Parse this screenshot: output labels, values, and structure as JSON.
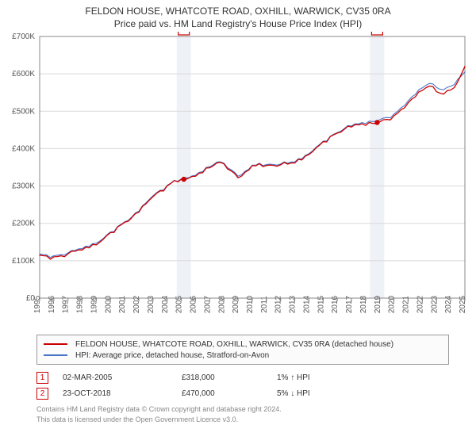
{
  "title_line1": "FELDON HOUSE, WHATCOTE ROAD, OXHILL, WARWICK, CV35 0RA",
  "title_line2": "Price paid vs. HM Land Registry's House Price Index (HPI)",
  "chart": {
    "type": "line",
    "background_color": "#ffffff",
    "plot_border_color": "#888888",
    "grid_color": "#d9d9d9",
    "marker_band_color": "#eef1f6",
    "yaxis": {
      "min": 0,
      "max": 700000,
      "step": 100000,
      "tick_labels": [
        "£0",
        "£100K",
        "£200K",
        "£300K",
        "£400K",
        "£500K",
        "£600K",
        "£700K"
      ],
      "label_fontsize": 10,
      "label_color": "#555555"
    },
    "xaxis": {
      "year_min": 1995,
      "year_max": 2025,
      "tick_years": [
        1995,
        1996,
        1997,
        1998,
        1999,
        2000,
        2001,
        2002,
        2003,
        2004,
        2005,
        2006,
        2007,
        2008,
        2009,
        2010,
        2011,
        2012,
        2013,
        2014,
        2015,
        2016,
        2017,
        2018,
        2019,
        2020,
        2021,
        2022,
        2023,
        2024,
        2025
      ],
      "label_fontsize": 10,
      "label_color": "#555555",
      "label_rotation": -90
    },
    "series": [
      {
        "name": "price_paid",
        "color": "#cc0000",
        "line_width": 1.3,
        "legend_label": "FELDON HOUSE, WHATCOTE ROAD, OXHILL, WARWICK, CV35 0RA (detached house)",
        "data": [
          [
            1995.0,
            115000
          ],
          [
            1995.5,
            108000
          ],
          [
            1996.0,
            106000
          ],
          [
            1996.5,
            110000
          ],
          [
            1997.0,
            118000
          ],
          [
            1997.5,
            128000
          ],
          [
            1998.0,
            133000
          ],
          [
            1998.5,
            139000
          ],
          [
            1999.0,
            146000
          ],
          [
            1999.5,
            158000
          ],
          [
            2000.0,
            172000
          ],
          [
            2000.5,
            186000
          ],
          [
            2001.0,
            200000
          ],
          [
            2001.5,
            216000
          ],
          [
            2002.0,
            234000
          ],
          [
            2002.5,
            256000
          ],
          [
            2003.0,
            272000
          ],
          [
            2003.5,
            284000
          ],
          [
            2004.0,
            296000
          ],
          [
            2004.5,
            311000
          ],
          [
            2005.0,
            317000
          ],
          [
            2005.17,
            318000
          ],
          [
            2005.5,
            322000
          ],
          [
            2006.0,
            330000
          ],
          [
            2006.5,
            340000
          ],
          [
            2007.0,
            352000
          ],
          [
            2007.5,
            362000
          ],
          [
            2008.0,
            358000
          ],
          [
            2008.5,
            340000
          ],
          [
            2009.0,
            322000
          ],
          [
            2009.5,
            334000
          ],
          [
            2010.0,
            350000
          ],
          [
            2010.5,
            356000
          ],
          [
            2011.0,
            352000
          ],
          [
            2011.5,
            354000
          ],
          [
            2012.0,
            358000
          ],
          [
            2012.5,
            362000
          ],
          [
            2013.0,
            366000
          ],
          [
            2013.5,
            374000
          ],
          [
            2014.0,
            386000
          ],
          [
            2014.5,
            400000
          ],
          [
            2015.0,
            414000
          ],
          [
            2015.5,
            428000
          ],
          [
            2016.0,
            440000
          ],
          [
            2016.5,
            454000
          ],
          [
            2017.0,
            462000
          ],
          [
            2017.5,
            468000
          ],
          [
            2018.0,
            466000
          ],
          [
            2018.5,
            470000
          ],
          [
            2018.81,
            470000
          ],
          [
            2019.0,
            472000
          ],
          [
            2019.5,
            476000
          ],
          [
            2020.0,
            484000
          ],
          [
            2020.5,
            500000
          ],
          [
            2021.0,
            522000
          ],
          [
            2021.5,
            542000
          ],
          [
            2022.0,
            560000
          ],
          [
            2022.5,
            570000
          ],
          [
            2023.0,
            555000
          ],
          [
            2023.5,
            548000
          ],
          [
            2024.0,
            556000
          ],
          [
            2024.5,
            575000
          ],
          [
            2025.0,
            620000
          ]
        ]
      },
      {
        "name": "hpi",
        "color": "#4a74c9",
        "line_width": 1.1,
        "legend_label": "HPI: Average price, detached house, Stratford-on-Avon",
        "data": [
          [
            1995.0,
            118000
          ],
          [
            1995.5,
            112000
          ],
          [
            1996.0,
            110000
          ],
          [
            1996.5,
            114000
          ],
          [
            1997.0,
            121000
          ],
          [
            1997.5,
            130000
          ],
          [
            1998.0,
            136000
          ],
          [
            1998.5,
            142000
          ],
          [
            1999.0,
            149000
          ],
          [
            1999.5,
            160000
          ],
          [
            2000.0,
            174000
          ],
          [
            2000.5,
            188000
          ],
          [
            2001.0,
            202000
          ],
          [
            2001.5,
            218000
          ],
          [
            2002.0,
            236000
          ],
          [
            2002.5,
            258000
          ],
          [
            2003.0,
            274000
          ],
          [
            2003.5,
            286000
          ],
          [
            2004.0,
            298000
          ],
          [
            2004.5,
            312000
          ],
          [
            2005.0,
            318000
          ],
          [
            2005.5,
            323000
          ],
          [
            2006.0,
            332000
          ],
          [
            2006.5,
            342000
          ],
          [
            2007.0,
            354000
          ],
          [
            2007.5,
            364000
          ],
          [
            2008.0,
            360000
          ],
          [
            2008.5,
            343000
          ],
          [
            2009.0,
            326000
          ],
          [
            2009.5,
            337000
          ],
          [
            2010.0,
            352000
          ],
          [
            2010.5,
            358000
          ],
          [
            2011.0,
            355000
          ],
          [
            2011.5,
            357000
          ],
          [
            2012.0,
            360000
          ],
          [
            2012.5,
            364000
          ],
          [
            2013.0,
            368000
          ],
          [
            2013.5,
            376000
          ],
          [
            2014.0,
            388000
          ],
          [
            2014.5,
            402000
          ],
          [
            2015.0,
            416000
          ],
          [
            2015.5,
            430000
          ],
          [
            2016.0,
            442000
          ],
          [
            2016.5,
            456000
          ],
          [
            2017.0,
            464000
          ],
          [
            2017.5,
            470000
          ],
          [
            2018.0,
            470000
          ],
          [
            2018.5,
            474000
          ],
          [
            2019.0,
            477000
          ],
          [
            2019.5,
            481000
          ],
          [
            2020.0,
            489000
          ],
          [
            2020.5,
            506000
          ],
          [
            2021.0,
            528000
          ],
          [
            2021.5,
            548000
          ],
          [
            2022.0,
            566000
          ],
          [
            2022.5,
            576000
          ],
          [
            2023.0,
            565000
          ],
          [
            2023.5,
            558000
          ],
          [
            2024.0,
            565000
          ],
          [
            2024.5,
            582000
          ],
          [
            2025.0,
            605000
          ]
        ]
      }
    ],
    "sale_markers": [
      {
        "id": "1",
        "year": 2005.17,
        "price": 318000,
        "band_years": 1.0,
        "dot_color": "#cc0000"
      },
      {
        "id": "2",
        "year": 2018.81,
        "price": 470000,
        "band_years": 1.0,
        "dot_color": "#cc0000"
      }
    ]
  },
  "legend_border_color": "#999999",
  "sales_rows": [
    {
      "id": "1",
      "date": "02-MAR-2005",
      "price": "£318,000",
      "trend": "1% ↑ HPI"
    },
    {
      "id": "2",
      "date": "23-OCT-2018",
      "price": "£470,000",
      "trend": "5% ↓ HPI"
    }
  ],
  "footer_line1": "Contains HM Land Registry data © Crown copyright and database right 2024.",
  "footer_line2": "This data is licensed under the Open Government Licence v3.0."
}
